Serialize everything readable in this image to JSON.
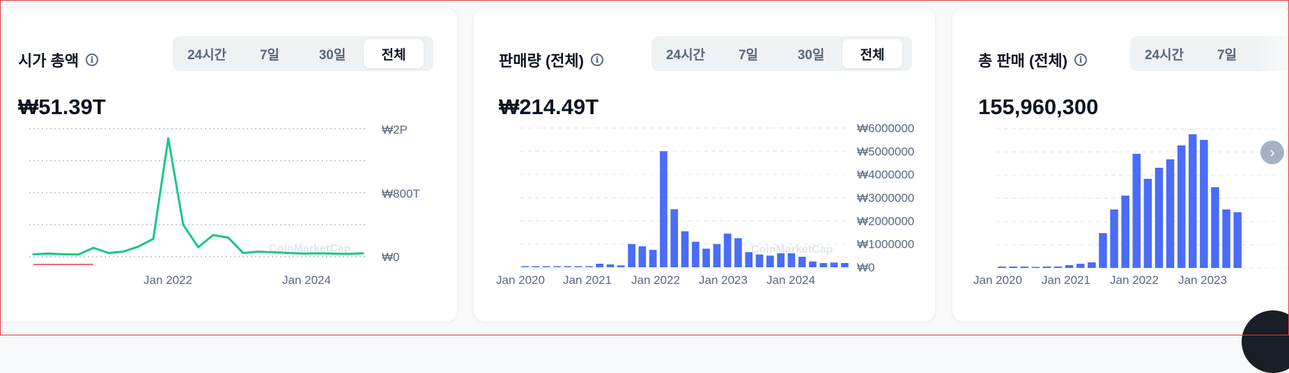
{
  "cards": {
    "market_cap": {
      "title": "시가 총액",
      "value": "₩51.39T",
      "tabs": [
        "24시간",
        "7일",
        "30일",
        "전체"
      ],
      "active_tab": "전체"
    },
    "volume": {
      "title": "판매량 (전체)",
      "value": "₩214.49T",
      "tabs": [
        "24시간",
        "7일",
        "30일",
        "전체"
      ],
      "active_tab": "전체"
    },
    "total_sales": {
      "title": "총 판매 (전체)",
      "value": "155,960,300",
      "tabs": [
        "24시간",
        "7일"
      ],
      "active_tab": ""
    }
  },
  "watermark": "CoinMarketCap",
  "icons": {
    "info": "info-icon",
    "next": "chevron-right-icon"
  },
  "colors": {
    "line": "#16c784",
    "bar": "#4a6cf7",
    "tab_bg": "#eff2f5",
    "text_secondary": "#58667e"
  },
  "chart_data": [
    {
      "type": "line",
      "title": "",
      "x": [
        "2020-12",
        "2021-03",
        "2021-06",
        "2021-09",
        "2021-12",
        "2022-01",
        "2022-03",
        "2022-05",
        "2022-07",
        "2022-09",
        "2022-11",
        "2023-01",
        "2023-03",
        "2023-05",
        "2023-07",
        "2023-09",
        "2023-11",
        "2024-01",
        "2024-03",
        "2024-05",
        "2024-07",
        "2024-09",
        "2024-11"
      ],
      "x_ticks": [
        "Jan 2022",
        "Jan 2024"
      ],
      "y_ticks": [
        "₩2P",
        "₩800T",
        "₩0"
      ],
      "y_labels_shown": [
        "₩2P",
        "₩800T",
        "₩0"
      ],
      "values_T": [
        40,
        50,
        40,
        35,
        140,
        60,
        80,
        160,
        280,
        1850,
        500,
        150,
        340,
        300,
        60,
        80,
        70,
        60,
        50,
        55,
        50,
        45,
        55
      ],
      "ylim_T": [
        0,
        2000
      ],
      "grid": true
    },
    {
      "type": "bar",
      "title": "",
      "x_ticks": [
        "Jan 2020",
        "Jan 2021",
        "Jan 2022",
        "Jan 2023",
        "Jan 2024"
      ],
      "y_ticks": [
        "₩6000000",
        "₩5000000",
        "₩4000000",
        "₩3000000",
        "₩2000000",
        "₩1000000",
        "₩0"
      ],
      "values": [
        5000,
        5000,
        5000,
        5000,
        5000,
        10000,
        10000,
        150000,
        120000,
        80000,
        1000000,
        900000,
        750000,
        5000000,
        2500000,
        1550000,
        1100000,
        800000,
        1000000,
        1450000,
        1250000,
        650000,
        550000,
        500000,
        600000,
        600000,
        450000,
        250000,
        180000,
        200000,
        180000
      ],
      "ylim": [
        0,
        6000000
      ],
      "grid": true
    },
    {
      "type": "bar",
      "title": "",
      "x_ticks": [
        "Jan 2020",
        "Jan 2021",
        "Jan 2022",
        "Jan 2023"
      ],
      "values_rel": [
        0.01,
        0.01,
        0.01,
        0.005,
        0.01,
        0.01,
        0.02,
        0.03,
        0.04,
        0.25,
        0.42,
        0.52,
        0.82,
        0.64,
        0.72,
        0.78,
        0.88,
        0.96,
        0.92,
        0.58,
        0.42,
        0.4
      ],
      "grid": true
    }
  ]
}
